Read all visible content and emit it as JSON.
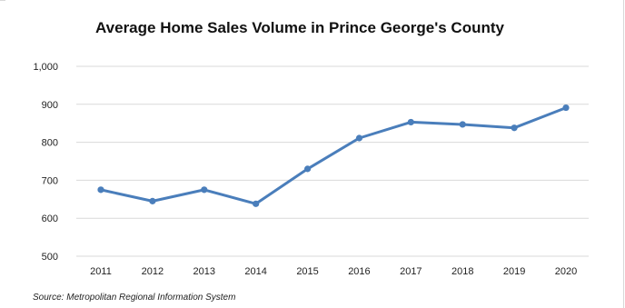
{
  "chart_data": {
    "type": "line",
    "title": "Average Home Sales Volume in Prince George's County",
    "xlabel": "",
    "ylabel": "",
    "categories": [
      "2011",
      "2012",
      "2013",
      "2014",
      "2015",
      "2016",
      "2017",
      "2018",
      "2019",
      "2020"
    ],
    "series": [
      {
        "values": [
          675,
          645,
          675,
          638,
          730,
          811,
          853,
          847,
          838,
          891
        ]
      }
    ],
    "ylim": [
      500,
      1000
    ],
    "y_ticks": [
      500,
      600,
      700,
      800,
      900,
      1000
    ],
    "y_tick_labels": [
      "500",
      "600",
      "700",
      "800",
      "900",
      "1,000"
    ],
    "grid": true,
    "legend": "none",
    "series_color": "#4a7ebb",
    "grid_color": "#d9d9d9",
    "source": "Source: Metropolitan Regional Information System"
  }
}
